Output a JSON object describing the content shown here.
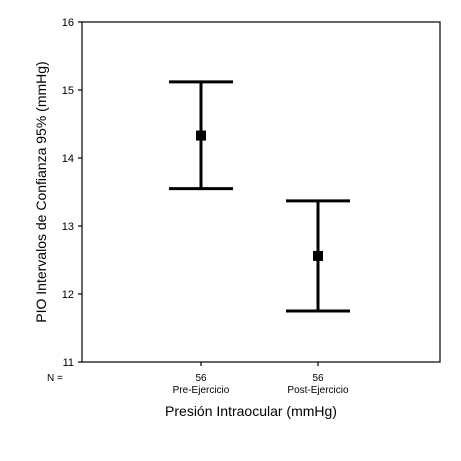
{
  "chart_data": {
    "type": "errorbar",
    "xlabel": "Presión Intraocular (mmHg)",
    "ylabel": "PIO Intervalos de Confianza 95% (mmHg)",
    "ylim": [
      11,
      16
    ],
    "yticks": [
      "11",
      "12",
      "13",
      "14",
      "15",
      "16"
    ],
    "n_label": "N =",
    "categories": [
      {
        "name": "Pre-Ejercicio",
        "n": "56",
        "mean": 14.33,
        "lower": 13.55,
        "upper": 15.12
      },
      {
        "name": "Post-Ejercicio",
        "n": "56",
        "mean": 12.56,
        "lower": 11.75,
        "upper": 13.37
      }
    ],
    "grid": false,
    "colors": {
      "marks": "#000000",
      "frame": "#000000"
    }
  }
}
